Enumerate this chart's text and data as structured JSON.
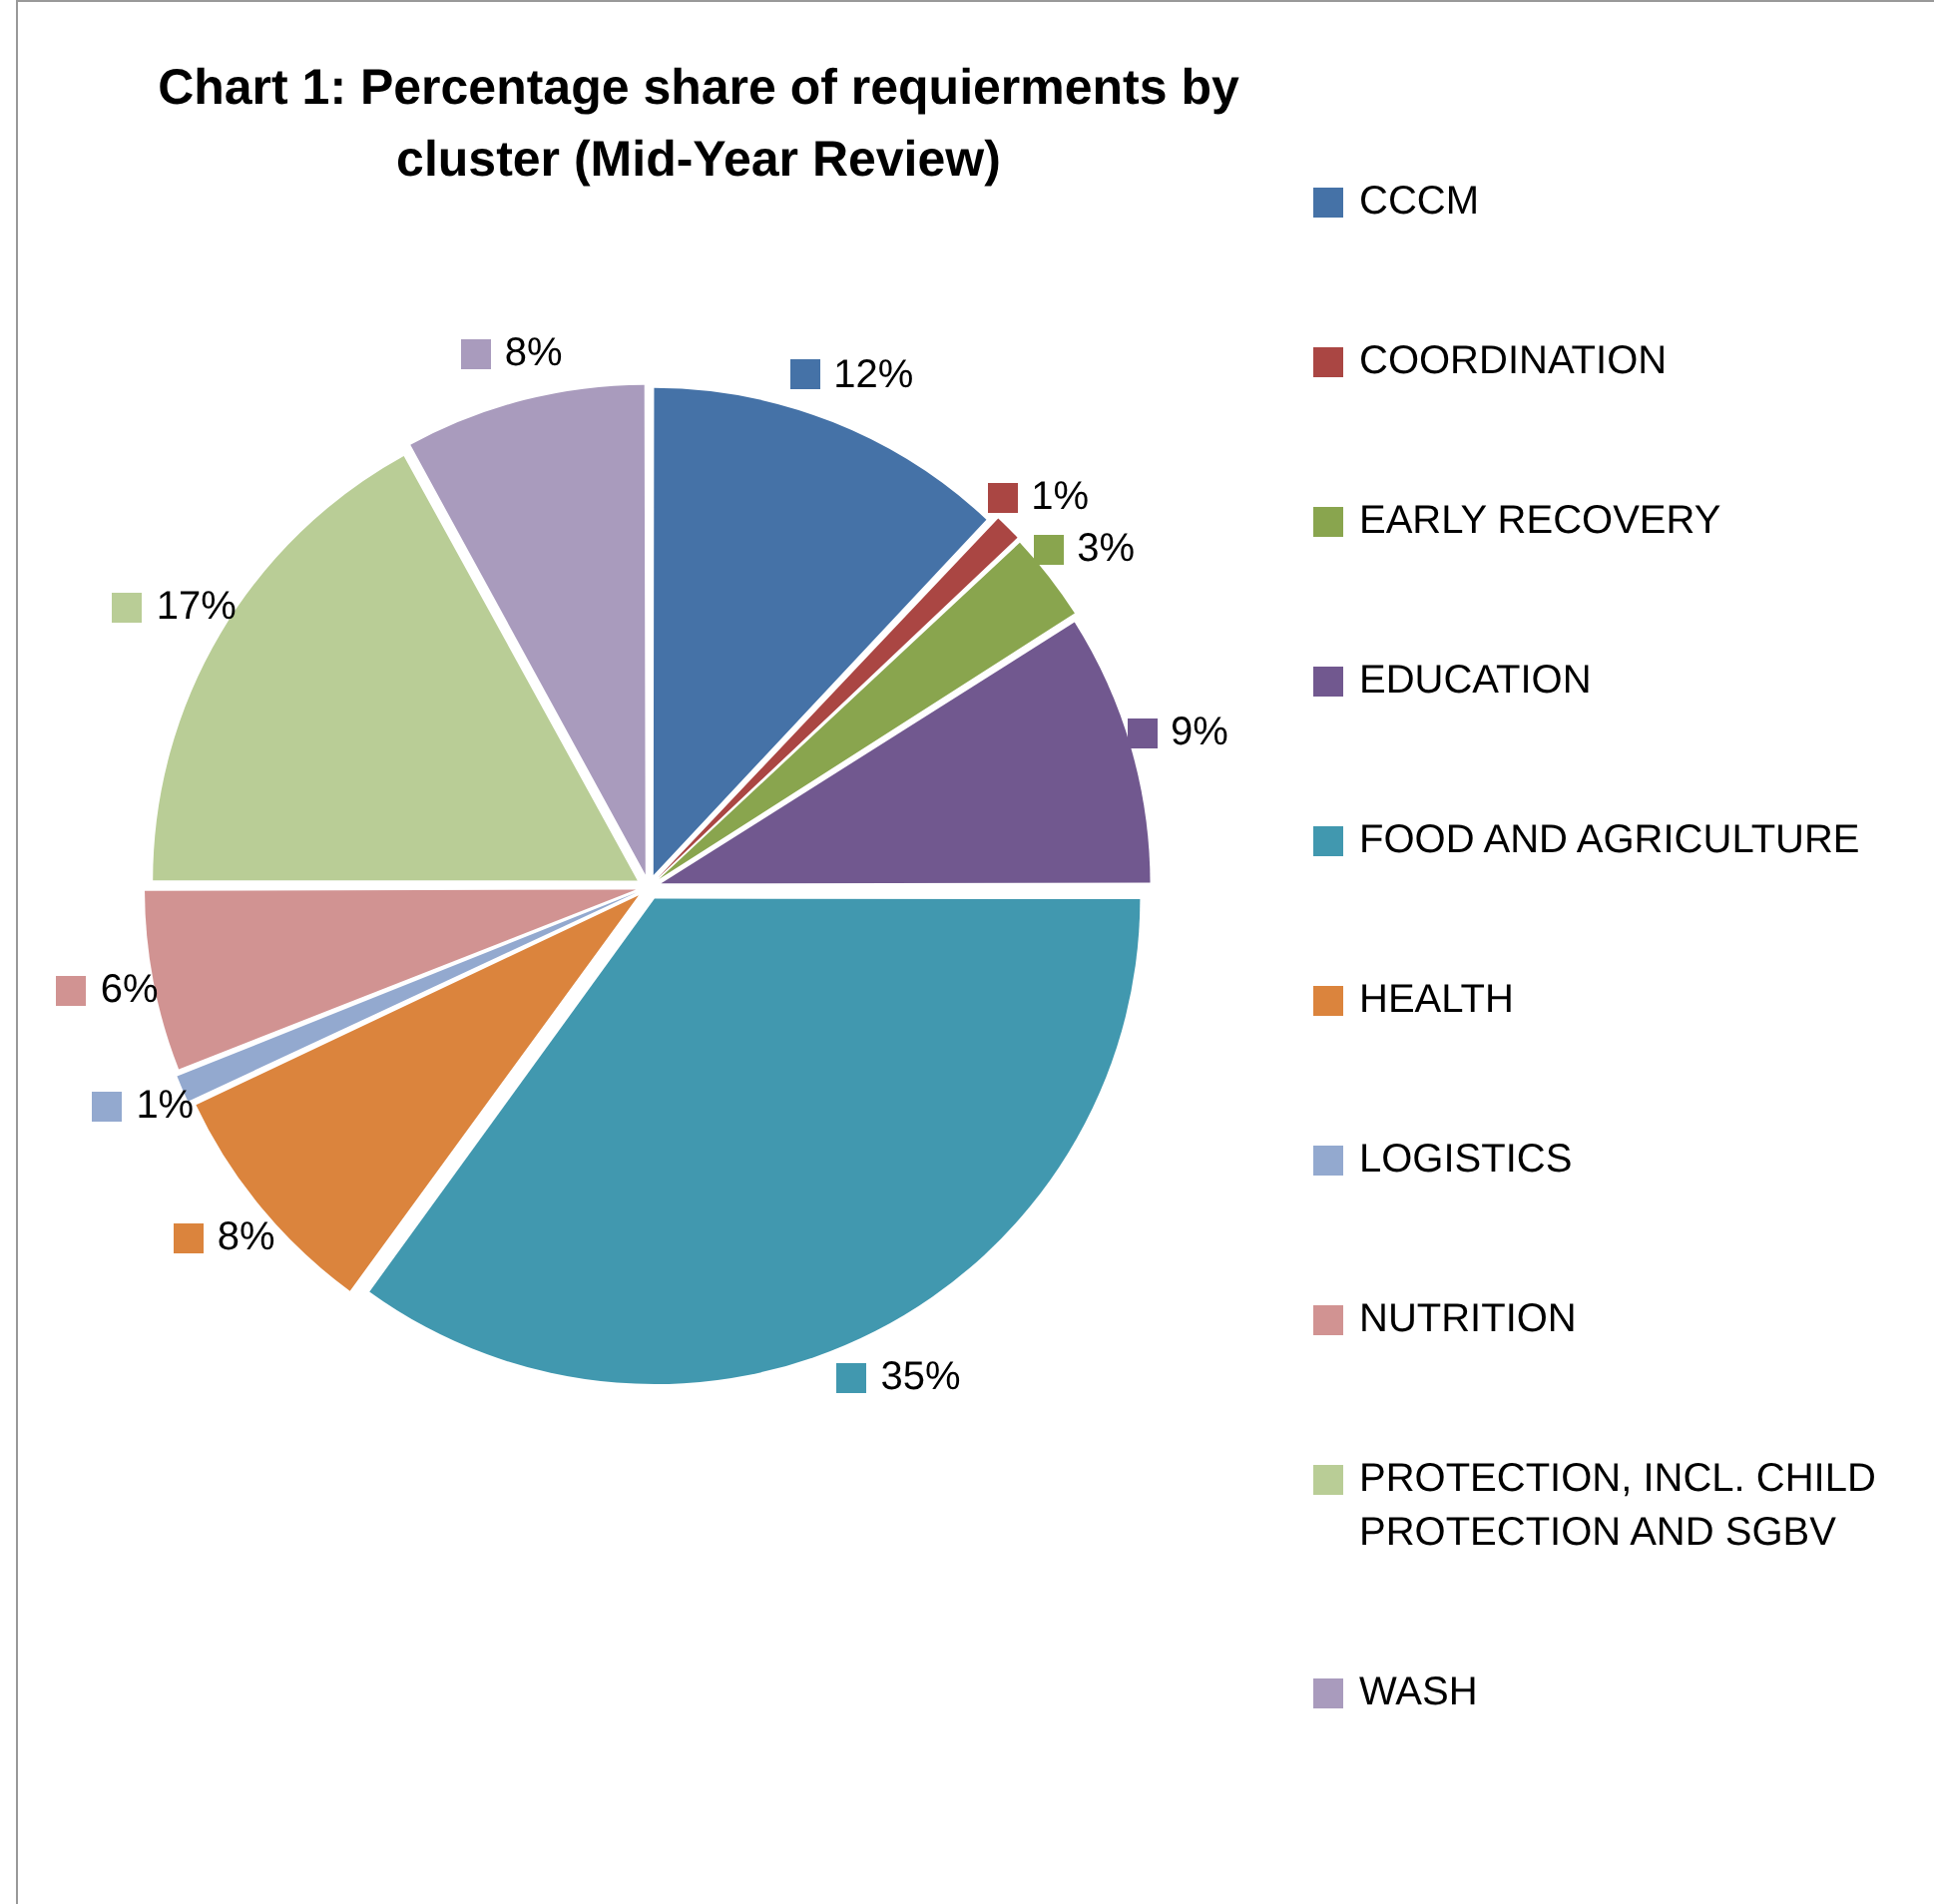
{
  "chart_data": {
    "type": "pie",
    "title": "Chart 1: Percentage share of requierments by cluster (Mid-Year Review)",
    "categories": [
      "CCCM",
      "COORDINATION",
      "EARLY RECOVERY",
      "EDUCATION",
      "FOOD AND AGRICULTURE",
      "HEALTH",
      "LOGISTICS",
      "NUTRITION",
      "PROTECTION, INCL. CHILD PROTECTION AND SGBV",
      "WASH"
    ],
    "values": [
      12,
      1,
      3,
      9,
      35,
      8,
      1,
      6,
      17,
      8
    ],
    "value_labels": [
      "12%",
      "1%",
      "3%",
      "9%",
      "35%",
      "8%",
      "1%",
      "6%",
      "17%",
      "8%"
    ],
    "colors": [
      "#4572a7",
      "#aa4643",
      "#89a54e",
      "#71588f",
      "#4198af",
      "#db843d",
      "#93a9cf",
      "#d19392",
      "#b9cd96",
      "#a99bbd"
    ],
    "legend": "right"
  }
}
